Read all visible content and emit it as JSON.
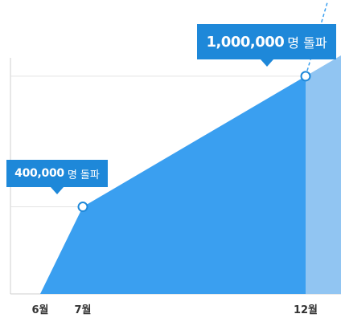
{
  "chart_data": {
    "type": "area",
    "x": [
      "6월",
      "7월",
      "12월"
    ],
    "values": [
      0,
      400000,
      1000000
    ],
    "ylim": [
      0,
      1350000
    ],
    "grid": true,
    "annotations": [
      {
        "x": "7월",
        "value": 400000,
        "number": "400,000",
        "suffix": "명 돌파"
      },
      {
        "x": "12월",
        "value": 1000000,
        "number": "1,000,000",
        "suffix": "명 돌파"
      }
    ],
    "colors": {
      "fill": "#3a9ff0",
      "projection_fill": "#91c5f2",
      "callout": "#1e88d9",
      "grid": "#e3e3e3",
      "axis": "#cfcfcf"
    }
  }
}
